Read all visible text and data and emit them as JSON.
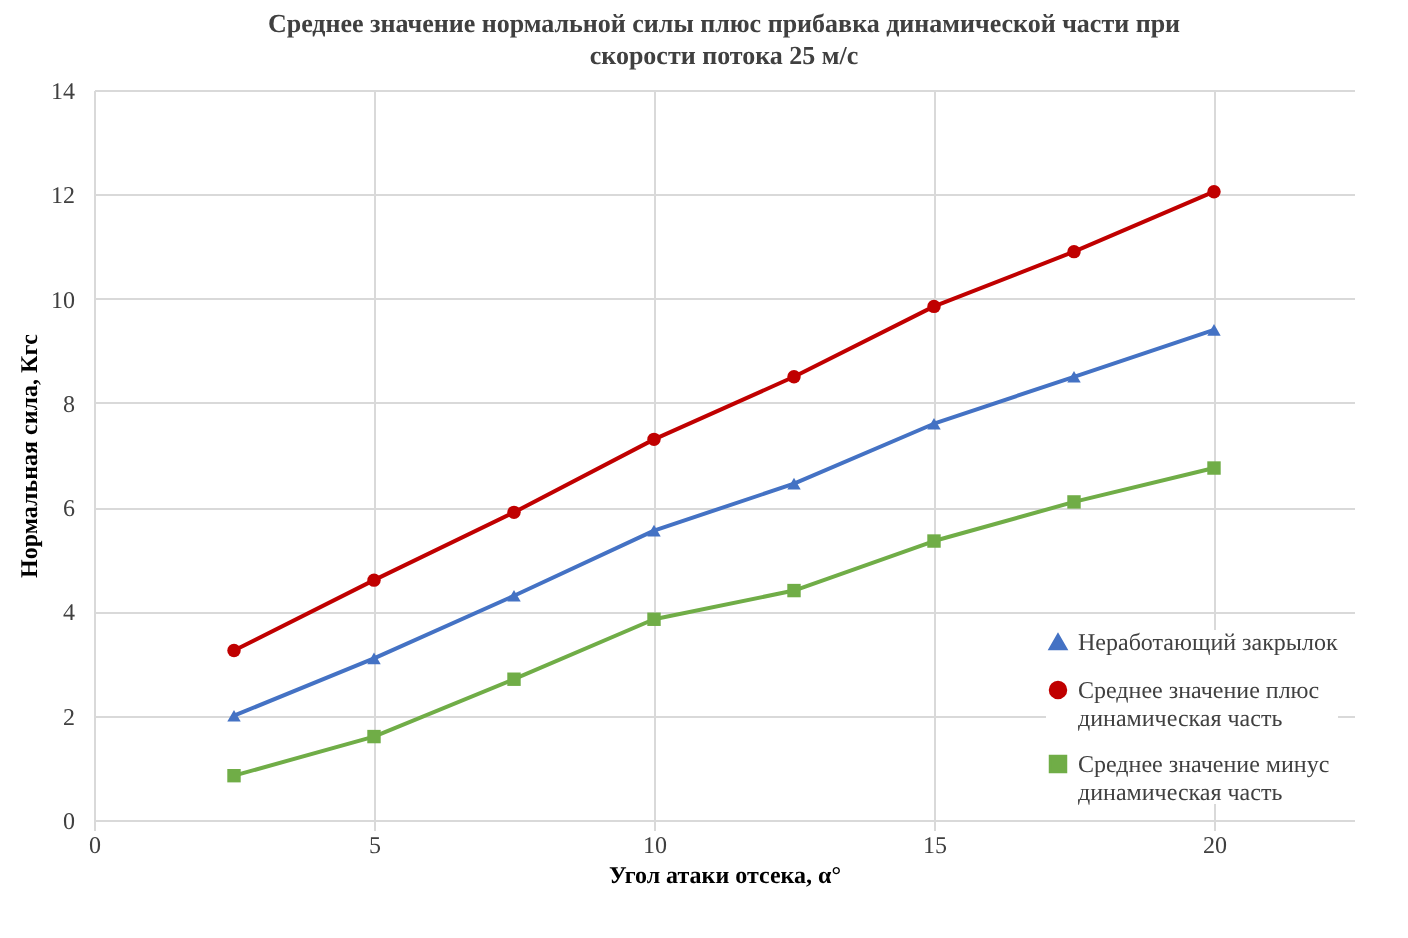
{
  "chart_data": {
    "type": "line",
    "title": "Среднее значение нормальной силы плюс прибавка динамической части при скорости потока 25 м/с",
    "xlabel": "Угол атаки отсека, α°",
    "ylabel": "Нормальная сила, Кгс",
    "x": [
      2.5,
      5,
      7.5,
      10,
      12.5,
      15,
      17.5,
      20
    ],
    "series": [
      {
        "name": "Неработающий закрылок",
        "color": "#4472c4",
        "marker": "triangle",
        "values": [
          2.0,
          3.1,
          4.3,
          5.55,
          6.45,
          7.6,
          8.5,
          9.4
        ]
      },
      {
        "name": "Среднее значение плюс динамическая часть",
        "color": "#c00000",
        "marker": "circle",
        "values": [
          3.25,
          4.6,
          5.9,
          7.3,
          8.5,
          9.85,
          10.9,
          12.05
        ]
      },
      {
        "name": "Среднее значение минус динамическая часть",
        "color": "#70ad47",
        "marker": "square",
        "values": [
          0.85,
          1.6,
          2.7,
          3.85,
          4.4,
          5.35,
          6.1,
          6.75
        ]
      }
    ],
    "xlim": [
      0,
      22.5
    ],
    "xticks": [
      0,
      5,
      10,
      15,
      20
    ],
    "ylim": [
      0,
      14
    ],
    "yticks": [
      0,
      2,
      4,
      6,
      8,
      10,
      12,
      14
    ],
    "grid": true,
    "legend": "bottom right",
    "line_style": "solid"
  }
}
